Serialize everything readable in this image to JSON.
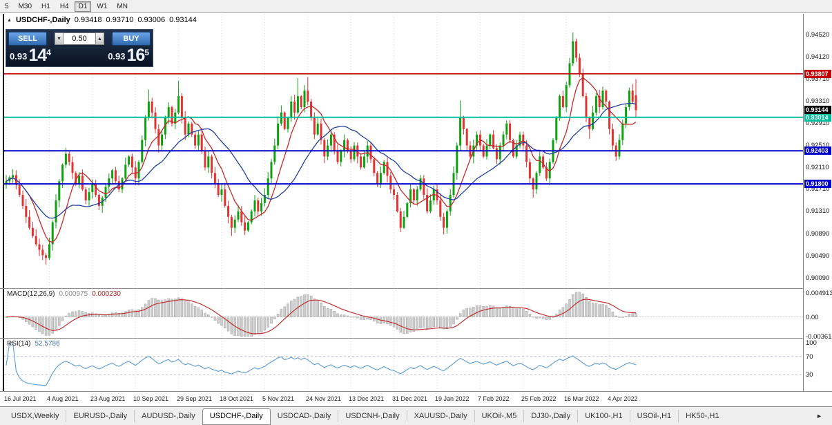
{
  "toolbar": {
    "timeframes": [
      "5",
      "M30",
      "H1",
      "H4",
      "D1",
      "W1",
      "MN"
    ],
    "active": "D1"
  },
  "chart_header": {
    "collapse_icon": "▲",
    "symbol": "USDCHF-,Daily",
    "open": "0.93418",
    "high": "0.93710",
    "low": "0.93006",
    "close": "0.93144"
  },
  "one_click": {
    "sell_label": "SELL",
    "buy_label": "BUY",
    "volume": "0.50",
    "down_icon": "▼",
    "up_icon": "▲",
    "bid_small": "0.93",
    "bid_big": "14",
    "bid_sup": "4",
    "ask_small": "0.93",
    "ask_big": "16",
    "ask_sup": "5"
  },
  "tabs": {
    "items": [
      "USDX,Weekly",
      "EURUSD-,Daily",
      "AUDUSD-,Daily",
      "USDCHF-,Daily",
      "USDCAD-,Daily",
      "USDCNH-,Daily",
      "XAUUSD-,Daily",
      "UKOil-,M5",
      "DJ30-,Daily",
      "UK100-,H1",
      "USOil-,H1",
      "HK50-,H1"
    ],
    "active_index": 3,
    "scroll_right_icon": "►"
  },
  "chart_data": {
    "type": "candlestick",
    "symbol": "USDCHF-",
    "timeframe": "Daily",
    "ylim": [
      0.899,
      0.949
    ],
    "first_open": 0.918,
    "closes": [
      0.9185,
      0.9192,
      0.9196,
      0.9178,
      0.916,
      0.914,
      0.912,
      0.91,
      0.9085,
      0.907,
      0.906,
      0.905,
      0.9045,
      0.907,
      0.911,
      0.915,
      0.9185,
      0.9215,
      0.9235,
      0.922,
      0.92,
      0.918,
      0.9195,
      0.917,
      0.915,
      0.9165,
      0.918,
      0.916,
      0.914,
      0.9155,
      0.9175,
      0.919,
      0.9205,
      0.9185,
      0.917,
      0.919,
      0.9215,
      0.923,
      0.921,
      0.919,
      0.922,
      0.926,
      0.93,
      0.933,
      0.931,
      0.928,
      0.925,
      0.927,
      0.93,
      0.932,
      0.929,
      0.931,
      0.934,
      0.93,
      0.927,
      0.929,
      0.927,
      0.925,
      0.927,
      0.924,
      0.921,
      0.923,
      0.92,
      0.918,
      0.916,
      0.917,
      0.914,
      0.912,
      0.91,
      0.9115,
      0.913,
      0.911,
      0.9095,
      0.911,
      0.913,
      0.915,
      0.913,
      0.9145,
      0.916,
      0.919,
      0.922,
      0.925,
      0.929,
      0.931,
      0.928,
      0.93,
      0.933,
      0.931,
      0.934,
      0.932,
      0.935,
      0.933,
      0.93,
      0.927,
      0.929,
      0.926,
      0.923,
      0.925,
      0.927,
      0.924,
      0.922,
      0.924,
      0.926,
      0.924,
      0.9225,
      0.925,
      0.923,
      0.921,
      0.923,
      0.925,
      0.9225,
      0.92,
      0.918,
      0.92,
      0.922,
      0.9195,
      0.917,
      0.916,
      0.913,
      0.91,
      0.912,
      0.9145,
      0.917,
      0.915,
      0.917,
      0.919,
      0.916,
      0.913,
      0.915,
      0.917,
      0.915,
      0.912,
      0.91,
      0.913,
      0.916,
      0.92,
      0.925,
      0.93,
      0.928,
      0.925,
      0.923,
      0.925,
      0.927,
      0.925,
      0.923,
      0.925,
      0.927,
      0.9245,
      0.9225,
      0.925,
      0.927,
      0.929,
      0.926,
      0.923,
      0.925,
      0.927,
      0.925,
      0.922,
      0.919,
      0.917,
      0.92,
      0.923,
      0.921,
      0.919,
      0.922,
      0.926,
      0.93,
      0.934,
      0.932,
      0.936,
      0.94,
      0.944,
      0.941,
      0.938,
      0.934,
      0.93,
      0.928,
      0.931,
      0.934,
      0.932,
      0.935,
      0.933,
      0.928,
      0.925,
      0.923,
      0.926,
      0.929,
      0.932,
      0.935,
      0.933,
      0.93144
    ],
    "last_ohlc": [
      0.93418,
      0.9371,
      0.93006,
      0.93144
    ],
    "wick_overrides": {
      "12": {
        "low": 0.9033
      },
      "18": {
        "high": 0.9246
      },
      "43": {
        "high": 0.9352
      },
      "52": {
        "high": 0.9368
      },
      "68": {
        "low": 0.9085
      },
      "72": {
        "low": 0.9087
      },
      "88": {
        "high": 0.9373
      },
      "91": {
        "high": 0.9375
      },
      "119": {
        "low": 0.9092
      },
      "132": {
        "low": 0.9088
      },
      "137": {
        "high": 0.9332
      },
      "159": {
        "low": 0.9155
      },
      "171": {
        "high": 0.9456
      },
      "176": {
        "low": 0.9262
      },
      "184": {
        "low": 0.9222
      }
    },
    "y_ticks": [
      {
        "label": "0.94520",
        "value": 0.9452
      },
      {
        "label": "0.94120",
        "value": 0.9412
      },
      {
        "label": "0.93710",
        "value": 0.9371
      },
      {
        "label": "0.93310",
        "value": 0.9331
      },
      {
        "label": "0.92910",
        "value": 0.9291
      },
      {
        "label": "0.92510",
        "value": 0.9251
      },
      {
        "label": "0.92110",
        "value": 0.9211
      },
      {
        "label": "0.91710",
        "value": 0.9171
      },
      {
        "label": "0.91310",
        "value": 0.9131
      },
      {
        "label": "0.90890",
        "value": 0.9089
      },
      {
        "label": "0.90490",
        "value": 0.9049
      },
      {
        "label": "0.90090",
        "value": 0.9009
      }
    ],
    "x_ticks": [
      {
        "index": 0,
        "label": "16 Jul 2021"
      },
      {
        "index": 13,
        "label": "4 Aug 2021"
      },
      {
        "index": 26,
        "label": "23 Aug 2021"
      },
      {
        "index": 39,
        "label": "10 Sep 2021"
      },
      {
        "index": 52,
        "label": "29 Sep 2021"
      },
      {
        "index": 65,
        "label": "18 Oct 2021"
      },
      {
        "index": 78,
        "label": "5 Nov 2021"
      },
      {
        "index": 91,
        "label": "24 Nov 2021"
      },
      {
        "index": 104,
        "label": "13 Dec 2021"
      },
      {
        "index": 117,
        "label": "31 Dec 2021"
      },
      {
        "index": 130,
        "label": "19 Jan 2022"
      },
      {
        "index": 143,
        "label": "7 Feb 2022"
      },
      {
        "index": 156,
        "label": "25 Feb 2022"
      },
      {
        "index": 169,
        "label": "16 Mar 2022"
      },
      {
        "index": 182,
        "label": "4 Apr 2022"
      }
    ],
    "hlines": [
      {
        "label": "0.93807",
        "value": 0.93807,
        "color": "#C40000",
        "width": 1.6
      },
      {
        "label": "0.93014",
        "value": 0.93014,
        "color": "#00BE9B",
        "width": 2
      },
      {
        "label": "0.92403",
        "value": 0.92403,
        "color": "#0000CC",
        "width": 2
      },
      {
        "label": "0.91800",
        "value": 0.918,
        "color": "#0000CC",
        "width": 2
      }
    ],
    "current_price": {
      "label": "0.93144",
      "value": 0.93144,
      "badge_color": "#000000"
    },
    "colors": {
      "up": "#0FA00F",
      "down": "#E23232",
      "grid": "#D7D7D7"
    },
    "ma": [
      {
        "name": "ma-fast",
        "period": 8,
        "color": "#C62828"
      },
      {
        "name": "ma-slow",
        "period": 21,
        "color": "#20409E"
      }
    ],
    "macd": {
      "label": "MACD(12,26,9)",
      "fast": 12,
      "slow": 26,
      "signal": 9,
      "value_main": "0.000975",
      "value_signal": "0.000230",
      "ylim": [
        -0.00361,
        0.004913
      ],
      "y_ticks": [
        {
          "label": "0.004913",
          "value": 0.004913
        },
        {
          "label": "0.00",
          "value": 0
        },
        {
          "label": "-0.00361",
          "value": -0.00361
        }
      ],
      "hist_color": "#CDCDCD",
      "hist_stroke": "#A6A6A6",
      "signal_color": "#C03030"
    },
    "rsi": {
      "label": "RSI(14)",
      "period": 14,
      "value": "52.5786",
      "levels": [
        70,
        30
      ],
      "y_ticks": [
        {
          "label": "100",
          "value": 100
        },
        {
          "label": "70",
          "value": 70
        },
        {
          "label": "30",
          "value": 30
        }
      ],
      "line_color": "#5B9BD5",
      "level_color": "#BCBCD2"
    }
  }
}
